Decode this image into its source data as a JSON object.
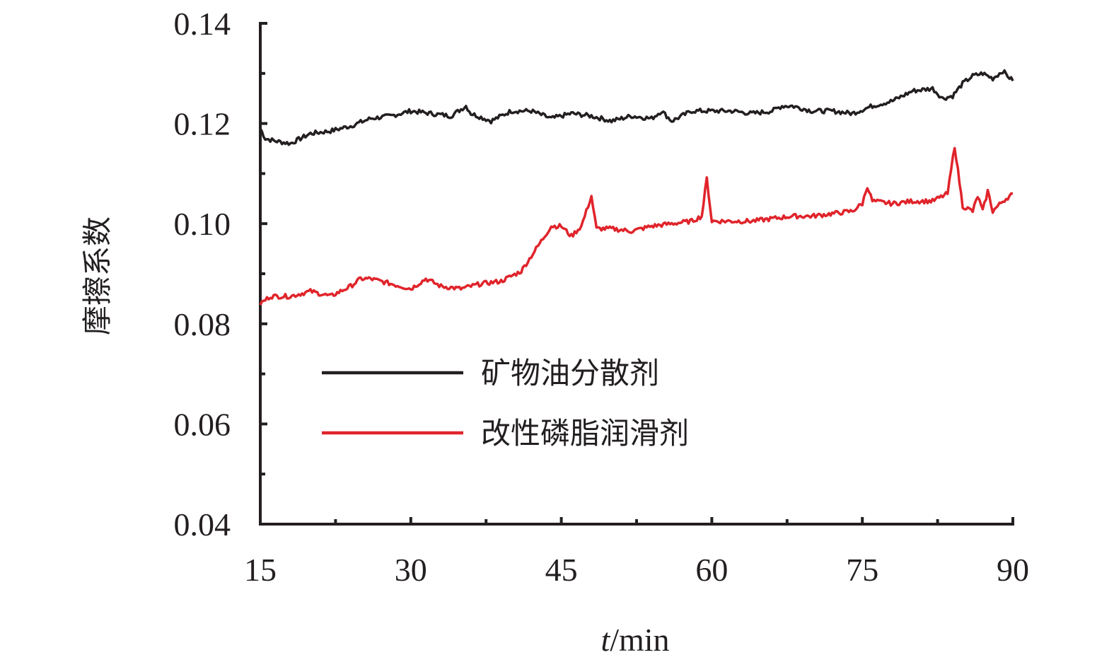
{
  "chart_data": {
    "type": "line",
    "title": "",
    "xlabel_italic": "t",
    "xlabel_unit": "/min",
    "ylabel": "摩擦系数",
    "xlim": [
      15,
      90
    ],
    "ylim": [
      0.04,
      0.14
    ],
    "xticks": [
      "15",
      "30",
      "45",
      "60",
      "75",
      "90"
    ],
    "yticks": [
      "0.04",
      "0.06",
      "0.08",
      "0.10",
      "0.12",
      "0.14"
    ],
    "grid": false,
    "legend_position": "lower-center",
    "series": [
      {
        "name": "矿物油分散剂",
        "color": "#231f20",
        "x": [
          15,
          15.5,
          16.5,
          18,
          20,
          22,
          24,
          26,
          28,
          30,
          32,
          34,
          35.5,
          36,
          38,
          40,
          42,
          44,
          46,
          48,
          50,
          52,
          54,
          55,
          56,
          58,
          60,
          62,
          64,
          66,
          67,
          68,
          70,
          72,
          74,
          76,
          78,
          80,
          82,
          83,
          84,
          85,
          86,
          87,
          88,
          89,
          89.5,
          90
        ],
        "y": [
          0.119,
          0.117,
          0.1165,
          0.116,
          0.118,
          0.1185,
          0.1195,
          0.121,
          0.1215,
          0.1225,
          0.122,
          0.1215,
          0.1235,
          0.122,
          0.1205,
          0.1225,
          0.1225,
          0.121,
          0.122,
          0.1215,
          0.1205,
          0.1215,
          0.121,
          0.1225,
          0.1205,
          0.1225,
          0.1225,
          0.1225,
          0.122,
          0.1225,
          0.1235,
          0.1235,
          0.1225,
          0.1225,
          0.122,
          0.1235,
          0.1245,
          0.1265,
          0.127,
          0.125,
          0.1255,
          0.128,
          0.1295,
          0.13,
          0.129,
          0.1305,
          0.1295,
          0.1285
        ]
      },
      {
        "name": "改性磷脂润滑剂",
        "color": "#e0242b",
        "x": [
          15,
          16,
          18,
          20,
          22,
          24,
          25,
          26,
          28,
          30,
          31.5,
          33,
          35,
          37,
          39,
          41,
          43,
          44,
          45,
          46,
          47,
          48,
          48.5,
          50,
          52,
          54,
          56,
          58,
          59,
          59.5,
          60,
          62,
          64,
          66,
          68,
          70,
          72,
          74,
          75,
          75.5,
          76,
          78,
          80,
          82,
          83.5,
          84.2,
          85,
          86,
          86.5,
          87,
          87.5,
          88,
          89,
          90
        ],
        "y": [
          0.084,
          0.0855,
          0.0855,
          0.0865,
          0.0855,
          0.0875,
          0.089,
          0.089,
          0.088,
          0.087,
          0.089,
          0.0875,
          0.087,
          0.088,
          0.0885,
          0.0905,
          0.0965,
          0.0995,
          0.0995,
          0.0975,
          0.0995,
          0.1055,
          0.099,
          0.099,
          0.0985,
          0.0995,
          0.1,
          0.1005,
          0.1015,
          0.109,
          0.1005,
          0.1005,
          0.1005,
          0.101,
          0.1015,
          0.1015,
          0.102,
          0.1025,
          0.104,
          0.1075,
          0.1045,
          0.104,
          0.1045,
          0.1045,
          0.106,
          0.1155,
          0.1035,
          0.1025,
          0.1055,
          0.1025,
          0.1065,
          0.1025,
          0.1045,
          0.106
        ]
      }
    ]
  }
}
